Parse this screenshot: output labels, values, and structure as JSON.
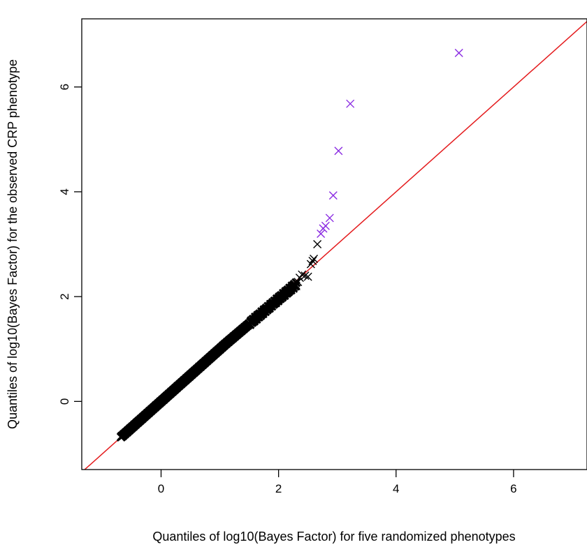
{
  "chart_data": {
    "type": "scatter",
    "title": "",
    "xlabel": "Quantiles of log10(Bayes Factor) for five randomized phenotypes",
    "ylabel": "Quantiles of log10(Bayes Factor) for the observed CRP phenotype",
    "xlim": [
      -1.35,
      7.25
    ],
    "ylim": [
      -1.3,
      7.3
    ],
    "x_ticks": [
      0,
      2,
      4,
      6
    ],
    "y_ticks": [
      0,
      2,
      4,
      6
    ],
    "x_tick_labels": [
      "0",
      "2",
      "4",
      "6"
    ],
    "y_tick_labels": [
      "0",
      "2",
      "4",
      "6"
    ],
    "marker": "x",
    "grid": false,
    "reference_line": {
      "slope": 1,
      "intercept": 0,
      "color": "#e41a1c"
    },
    "colors": {
      "bulk": "#000000",
      "highlight": "#8a2be2",
      "line": "#e41a1c"
    },
    "bulk_range": {
      "x": [
        -0.68,
        2.3
      ]
    },
    "series": [
      {
        "color": "#000000",
        "x": [
          1.9,
          2.0,
          2.1,
          2.15,
          2.2,
          2.25,
          2.3,
          2.33,
          2.36,
          2.4,
          2.45,
          2.5,
          2.55,
          2.58,
          2.6,
          2.66
        ],
        "y": [
          1.85,
          1.95,
          2.05,
          2.08,
          2.12,
          2.15,
          2.2,
          2.28,
          2.36,
          2.42,
          2.4,
          2.38,
          2.62,
          2.68,
          2.72,
          3.0
        ]
      },
      {
        "color": "#8a2be2",
        "x": [
          2.72,
          2.76,
          2.8,
          2.87,
          2.93,
          3.02,
          3.22,
          5.07
        ],
        "y": [
          3.2,
          3.3,
          3.35,
          3.5,
          3.93,
          4.78,
          5.68,
          6.65
        ]
      }
    ]
  }
}
